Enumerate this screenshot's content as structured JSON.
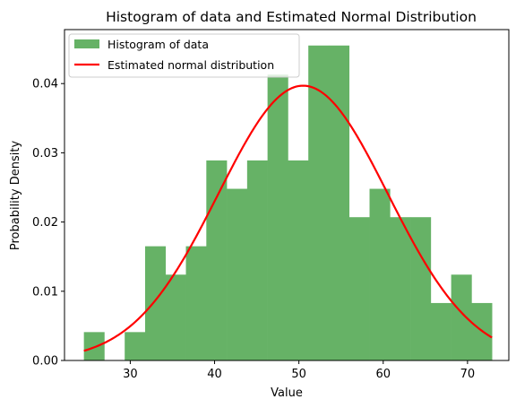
{
  "chart_data": {
    "type": "bar",
    "title": "Histogram of data and Estimated Normal Distribution",
    "xlabel": "Value",
    "ylabel": "Probability Density",
    "xlim": [
      22.2,
      74.9
    ],
    "ylim": [
      0,
      0.0478
    ],
    "x_ticks": [
      30,
      40,
      50,
      60,
      70
    ],
    "y_ticks": [
      0.0,
      0.01,
      0.02,
      0.03,
      0.04
    ],
    "y_tick_labels": [
      "0.00",
      "0.01",
      "0.02",
      "0.03",
      "0.04"
    ],
    "grid": false,
    "legend_position": "upper-left",
    "series": [
      {
        "name": "Histogram of data",
        "kind": "histogram",
        "color": "#66b266",
        "bin_edges": [
          24.5,
          26.92,
          29.34,
          31.76,
          34.18,
          36.6,
          39.02,
          41.44,
          43.86,
          46.28,
          48.7,
          51.12,
          53.54,
          55.96,
          58.38,
          60.8,
          63.22,
          65.64,
          68.06,
          70.48,
          72.9
        ],
        "density": [
          0.0041,
          0.0,
          0.0041,
          0.0165,
          0.0124,
          0.0165,
          0.0289,
          0.0248,
          0.0289,
          0.0413,
          0.0289,
          0.0455,
          0.0455,
          0.0207,
          0.0248,
          0.0207,
          0.0207,
          0.0083,
          0.0124,
          0.0083
        ]
      },
      {
        "name": "Estimated normal distribution",
        "kind": "line",
        "color": "#ff0000",
        "mean": 50.5,
        "std": 10.05
      }
    ]
  }
}
